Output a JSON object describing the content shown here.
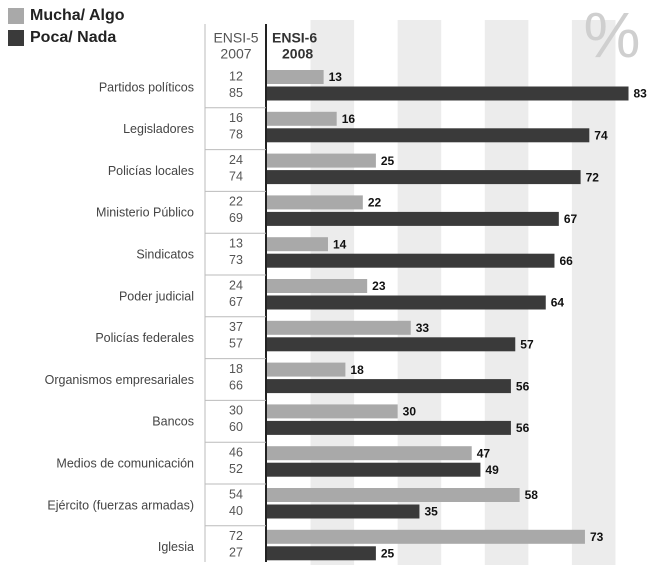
{
  "chart_data": {
    "type": "bar",
    "orientation": "horizontal",
    "unit_symbol": "%",
    "headers": {
      "ensi5": "ENSI-5",
      "y2007": "2007",
      "ensi6": "ENSI-6",
      "y2008": "2008"
    },
    "categories": [
      "Partidos políticos",
      "Legisladores",
      "Policías locales",
      "Ministerio Público",
      "Sindicatos",
      "Poder judicial",
      "Policías federales",
      "Organismos empresariales",
      "Bancos",
      "Medios de comunicación",
      "Ejército (fuerzas armadas)",
      "Iglesia"
    ],
    "series": [
      {
        "name": "Mucha/ Algo",
        "color": "#a9a9a9",
        "values": [
          13,
          16,
          25,
          22,
          14,
          23,
          33,
          18,
          30,
          47,
          58,
          73
        ],
        "values_2007": [
          12,
          16,
          24,
          22,
          13,
          24,
          37,
          18,
          30,
          46,
          54,
          72
        ]
      },
      {
        "name": "Poca/ Nada",
        "color": "#3a3a3a",
        "values": [
          83,
          74,
          72,
          67,
          66,
          64,
          57,
          56,
          56,
          49,
          35,
          25
        ],
        "values_2007": [
          85,
          78,
          74,
          69,
          73,
          67,
          57,
          66,
          60,
          52,
          40,
          27
        ]
      }
    ],
    "xlim": [
      0,
      90
    ],
    "legend": "top-left"
  }
}
